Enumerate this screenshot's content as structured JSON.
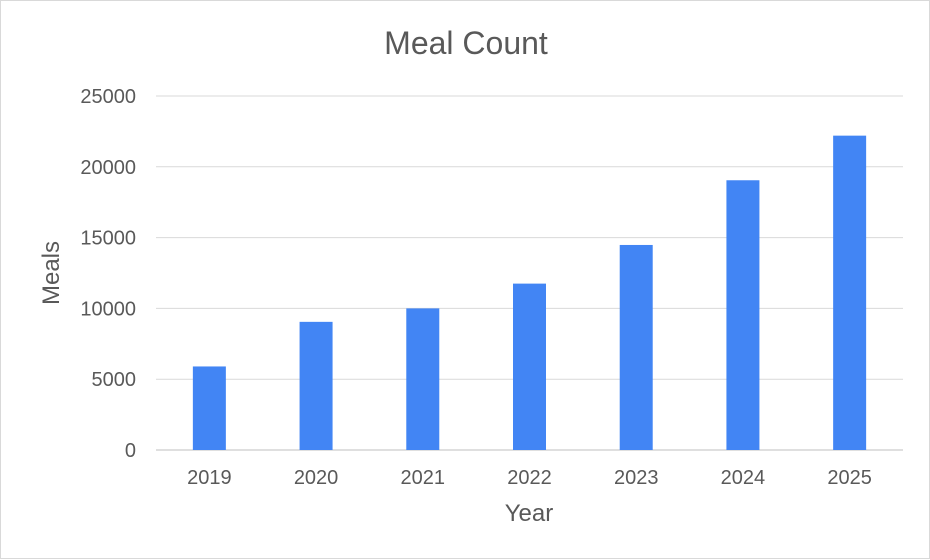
{
  "chart_data": {
    "type": "bar",
    "title": "Meal Count",
    "xlabel": "Year",
    "ylabel": "Meals",
    "categories": [
      "2019",
      "2020",
      "2021",
      "2022",
      "2023",
      "2024",
      "2025"
    ],
    "values": [
      5900,
      9050,
      10000,
      11750,
      14480,
      19050,
      22200
    ],
    "ylim": [
      0,
      25000
    ],
    "yticks": [
      "0",
      "5000",
      "10000",
      "15000",
      "20000",
      "25000"
    ],
    "grid": true,
    "legend": "none",
    "bar_color": "#4285f4"
  }
}
